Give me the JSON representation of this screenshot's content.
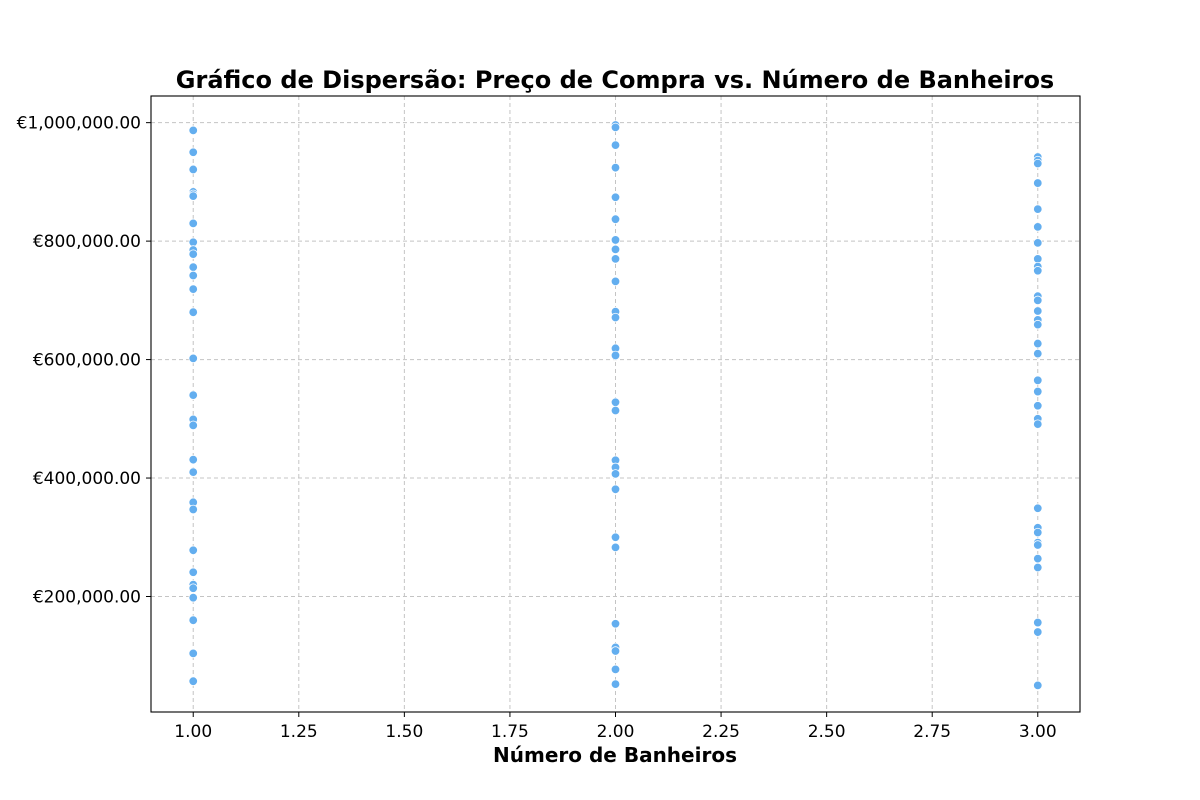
{
  "chart_data": {
    "type": "scatter",
    "title": "Gráfico de Dispersão: Preço de Compra vs. Número de Banheiros",
    "xlabel": "Número de Banheiros",
    "ylabel": "",
    "xlim": [
      0.9,
      3.1
    ],
    "ylim": [
      5000,
      1045000
    ],
    "x_ticks": [
      1.0,
      1.25,
      1.5,
      1.75,
      2.0,
      2.25,
      2.5,
      2.75,
      3.0
    ],
    "x_tick_labels": [
      "1.00",
      "1.25",
      "1.50",
      "1.75",
      "2.00",
      "2.25",
      "2.50",
      "2.75",
      "3.00"
    ],
    "y_ticks": [
      200000,
      400000,
      600000,
      800000,
      1000000
    ],
    "y_tick_labels": [
      "€200,000.00",
      "€400,000.00",
      "€600,000.00",
      "€800,000.00",
      "€1,000,000.00"
    ],
    "grid": true,
    "marker_color": "#63aeef",
    "series": [
      {
        "points": [
          [
            1,
            987000
          ],
          [
            1,
            950000
          ],
          [
            1,
            921000
          ],
          [
            1,
            883000
          ],
          [
            1,
            879000
          ],
          [
            1,
            876000
          ],
          [
            1,
            830000
          ],
          [
            1,
            798000
          ],
          [
            1,
            785000
          ],
          [
            1,
            778000
          ],
          [
            1,
            756000
          ],
          [
            1,
            742000
          ],
          [
            1,
            719000
          ],
          [
            1,
            680000
          ],
          [
            1,
            602000
          ],
          [
            1,
            540000
          ],
          [
            1,
            499000
          ],
          [
            1,
            489000
          ],
          [
            1,
            431000
          ],
          [
            1,
            410000
          ],
          [
            1,
            359000
          ],
          [
            1,
            347000
          ],
          [
            1,
            278000
          ],
          [
            1,
            241000
          ],
          [
            1,
            220000
          ],
          [
            1,
            214000
          ],
          [
            1,
            198000
          ],
          [
            1,
            160000
          ],
          [
            1,
            104000
          ],
          [
            1,
            57000
          ],
          [
            2,
            996000
          ],
          [
            2,
            992000
          ],
          [
            2,
            962000
          ],
          [
            2,
            924000
          ],
          [
            2,
            874000
          ],
          [
            2,
            837000
          ],
          [
            2,
            802000
          ],
          [
            2,
            786000
          ],
          [
            2,
            770000
          ],
          [
            2,
            732000
          ],
          [
            2,
            681000
          ],
          [
            2,
            671000
          ],
          [
            2,
            619000
          ],
          [
            2,
            607000
          ],
          [
            2,
            528000
          ],
          [
            2,
            514000
          ],
          [
            2,
            430000
          ],
          [
            2,
            418000
          ],
          [
            2,
            407000
          ],
          [
            2,
            381000
          ],
          [
            2,
            300000
          ],
          [
            2,
            283000
          ],
          [
            2,
            154000
          ],
          [
            2,
            114000
          ],
          [
            2,
            108000
          ],
          [
            2,
            77000
          ],
          [
            2,
            52000
          ],
          [
            3,
            942000
          ],
          [
            3,
            936000
          ],
          [
            3,
            931000
          ],
          [
            3,
            898000
          ],
          [
            3,
            854000
          ],
          [
            3,
            824000
          ],
          [
            3,
            797000
          ],
          [
            3,
            770000
          ],
          [
            3,
            757000
          ],
          [
            3,
            750000
          ],
          [
            3,
            707000
          ],
          [
            3,
            700000
          ],
          [
            3,
            682000
          ],
          [
            3,
            667000
          ],
          [
            3,
            659000
          ],
          [
            3,
            627000
          ],
          [
            3,
            610000
          ],
          [
            3,
            565000
          ],
          [
            3,
            546000
          ],
          [
            3,
            522000
          ],
          [
            3,
            500000
          ],
          [
            3,
            491000
          ],
          [
            3,
            349000
          ],
          [
            3,
            316000
          ],
          [
            3,
            308000
          ],
          [
            3,
            291000
          ],
          [
            3,
            287000
          ],
          [
            3,
            264000
          ],
          [
            3,
            249000
          ],
          [
            3,
            156000
          ],
          [
            3,
            140000
          ],
          [
            3,
            50000
          ]
        ]
      }
    ]
  }
}
